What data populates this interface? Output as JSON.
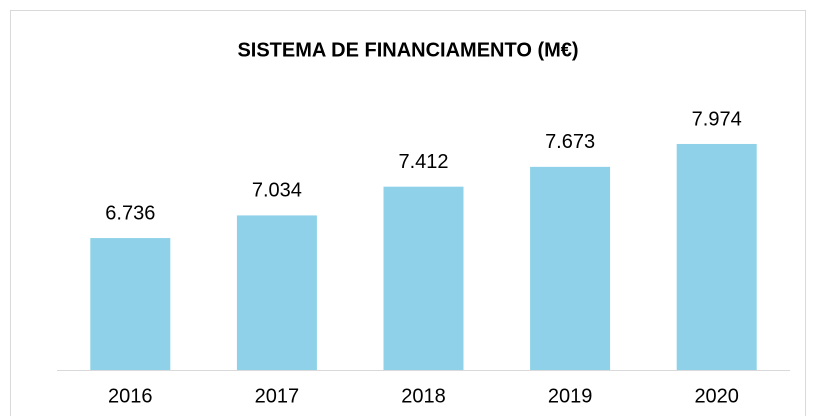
{
  "chart_data": {
    "type": "bar",
    "title": "SISTEMA DE FINANCIAMENTO (M€)",
    "categories": [
      "2016",
      "2017",
      "2018",
      "2019",
      "2020"
    ],
    "values": [
      6736,
      7034,
      7412,
      7673,
      7974
    ],
    "value_labels": [
      "6.736",
      "7.034",
      "7.412",
      "7.673",
      "7.974"
    ],
    "color": "#8fd1e8",
    "ylim": [
      5000,
      8500
    ]
  }
}
